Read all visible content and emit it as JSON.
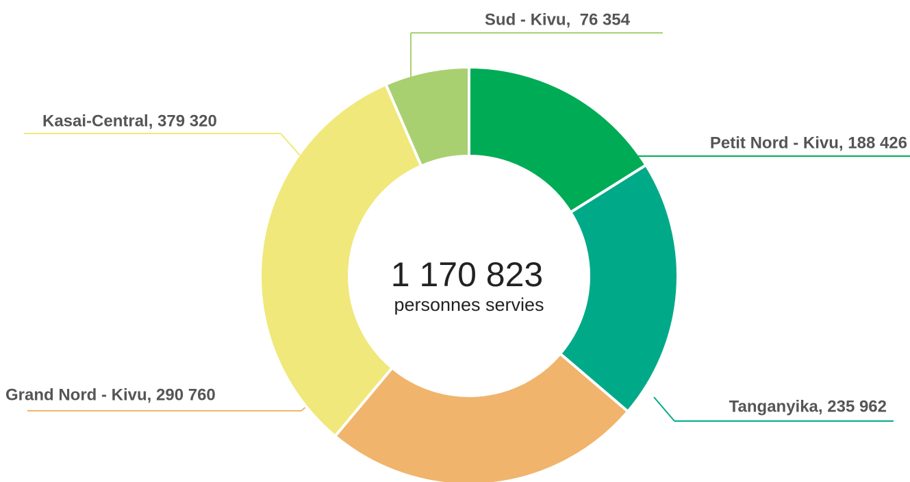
{
  "chart_data": {
    "type": "donut",
    "labels": [
      "Petit Nord - Kivu, 188 426",
      "Tanganyika, 235 962",
      "Grand Nord - Kivu, 290 760",
      "Kasai-Central, 379 320",
      "Sud - Kivu,  76 354"
    ],
    "values": [
      188426,
      235962,
      290760,
      379320,
      76354
    ],
    "colors": [
      "#00ab55",
      "#00aa88",
      "#f0b46c",
      "#f0e87a",
      "#a8d070"
    ],
    "total": "1 170 823",
    "total_caption": "personnes servies"
  }
}
